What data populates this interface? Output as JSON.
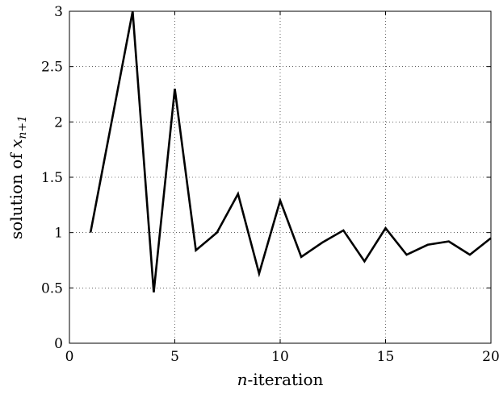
{
  "chart_data": {
    "type": "line",
    "title": "",
    "xlabel": {
      "italic": "n",
      "rest": "-iteration"
    },
    "ylabel": {
      "prefix": "solution of ",
      "var": "x",
      "sub": "n+1"
    },
    "xlim": [
      0,
      20
    ],
    "ylim": [
      0,
      3
    ],
    "xticks": [
      0,
      5,
      10,
      15,
      20
    ],
    "yticks": [
      0,
      0.5,
      1,
      1.5,
      2,
      2.5,
      3
    ],
    "xtick_labels": [
      "0",
      "5",
      "10",
      "15",
      "20"
    ],
    "ytick_labels": [
      "0",
      "0.5",
      "1",
      "1.5",
      "2",
      "2.5",
      "3"
    ],
    "grid": true,
    "series": [
      {
        "x": [
          1,
          2,
          3,
          4,
          5,
          6,
          7,
          8,
          9,
          10,
          11,
          12,
          13,
          14,
          15,
          16,
          17,
          18,
          19,
          20
        ],
        "values": [
          1.0,
          2.0,
          3.0,
          0.46,
          2.3,
          0.84,
          1.0,
          1.35,
          0.63,
          1.29,
          0.78,
          0.91,
          1.02,
          0.74,
          1.04,
          0.8,
          0.89,
          0.92,
          0.8,
          0.95
        ],
        "color": "#000000"
      }
    ]
  }
}
